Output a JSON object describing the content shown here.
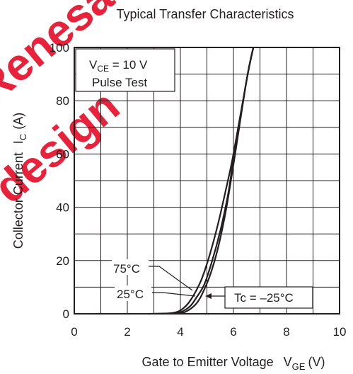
{
  "chart_data": {
    "type": "line",
    "title": "Typical Transfer Characteristics",
    "xlabel": "Gate to Emitter Voltage",
    "xlabel_symbol": "V",
    "xlabel_sub": "GE",
    "xlabel_unit": "(V)",
    "ylabel": "Collector Current",
    "ylabel_symbol": "I",
    "ylabel_sub": "C",
    "ylabel_unit": "(A)",
    "xlim": [
      0,
      10
    ],
    "ylim": [
      0,
      100
    ],
    "xticks": [
      "0",
      "2",
      "4",
      "6",
      "8",
      "10"
    ],
    "yticks": [
      "0",
      "20",
      "40",
      "60",
      "80",
      "100"
    ],
    "grid": true,
    "conditions": {
      "line1_symbol": "V",
      "line1_sub": "CE",
      "line1_rest": " = 10 V",
      "line2": "Pulse Test"
    },
    "series": [
      {
        "name": "75°C",
        "x": [
          2.8,
          3.6,
          3.9,
          4.1,
          4.3,
          4.5,
          4.8,
          5.1,
          5.4,
          5.7,
          6.0,
          6.5,
          6.75
        ],
        "y": [
          0,
          0.2,
          0.8,
          2.0,
          4.0,
          7.0,
          13,
          22,
          33,
          46,
          60,
          88,
          100
        ]
      },
      {
        "name": "25°C",
        "x": [
          3.0,
          3.8,
          4.0,
          4.2,
          4.4,
          4.6,
          4.9,
          5.2,
          5.5,
          5.8,
          6.0,
          6.5,
          6.75
        ],
        "y": [
          0,
          0.2,
          0.6,
          1.6,
          3.2,
          6.0,
          11,
          20,
          31,
          45,
          58,
          88,
          100
        ]
      },
      {
        "name": "Tc = –25°C",
        "x": [
          3.3,
          4.0,
          4.2,
          4.4,
          4.6,
          4.8,
          5.1,
          5.4,
          5.7,
          6.0,
          6.5,
          6.75
        ],
        "y": [
          0,
          0.3,
          0.8,
          2.0,
          3.8,
          7.0,
          14,
          24,
          38,
          56,
          88,
          100
        ]
      }
    ],
    "annotations": [
      "75°C",
      "25°C",
      "Tc = –25°C"
    ]
  },
  "watermark": {
    "words": [
      "Renesas",
      "design"
    ],
    "color": "#e8102c"
  }
}
